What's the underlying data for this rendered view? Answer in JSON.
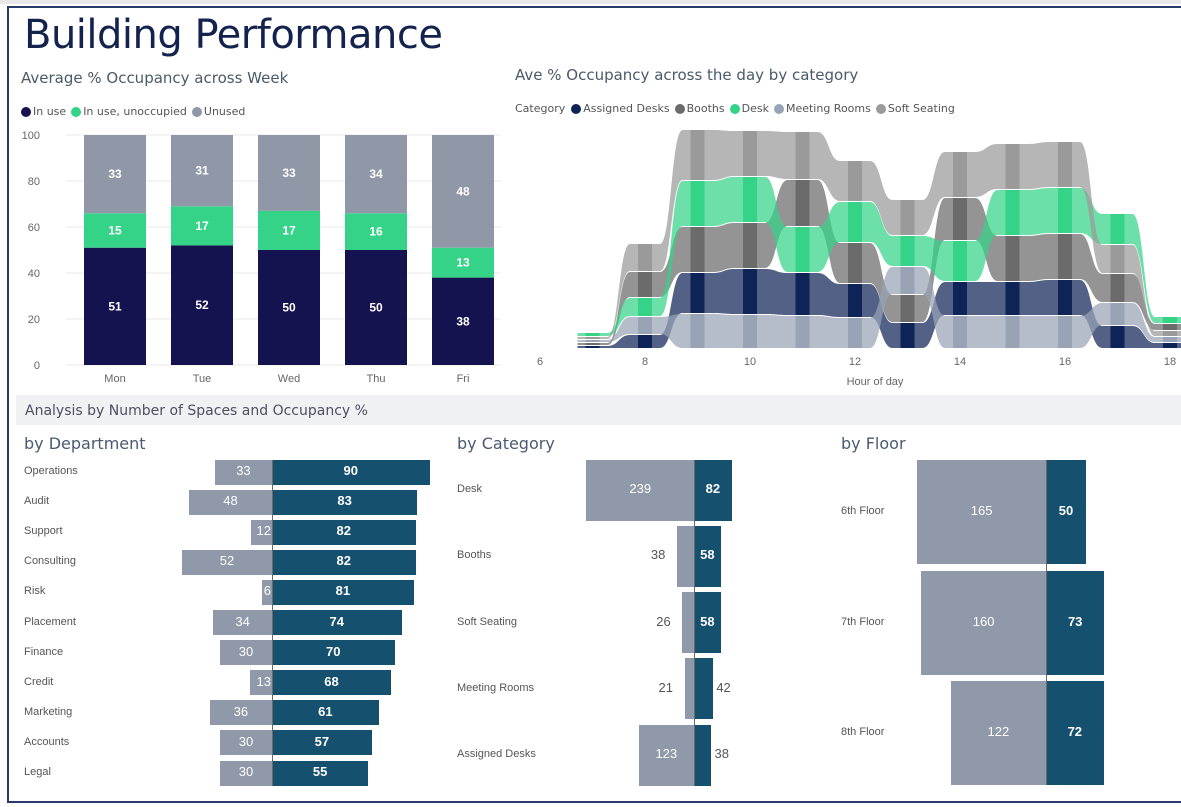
{
  "page": {
    "title": "Building Performance",
    "section_title": "Analysis by Number of Spaces and Occupancy %"
  },
  "colors": {
    "in_use": "#14124f",
    "in_use_unoccupied": "#34d388",
    "unused": "#9098a8",
    "assigned_desks": "#0f2456",
    "booths": "#6b6b6b",
    "desk": "#34d388",
    "meeting_rooms": "#98a3b5",
    "soft_seating": "#9a9a9a",
    "spaces_bar": "#9099aa",
    "occupancy_bar": "#16506f"
  },
  "chart_data": [
    {
      "id": "weekly",
      "type": "bar",
      "stacked": true,
      "title": "Average % Occupancy across Week",
      "categories": [
        "Mon",
        "Tue",
        "Wed",
        "Thu",
        "Fri"
      ],
      "series": [
        {
          "name": "In use",
          "values": [
            51,
            52,
            50,
            50,
            38
          ]
        },
        {
          "name": "In use, unoccupied",
          "values": [
            15,
            17,
            17,
            16,
            13
          ]
        },
        {
          "name": "Unused",
          "values": [
            33,
            31,
            33,
            34,
            48
          ]
        }
      ],
      "legend": [
        "In use",
        "In use, unoccupied",
        "Unused"
      ],
      "legend_position": "top-left",
      "yticks": [
        "0",
        "20",
        "40",
        "60",
        "80",
        "100"
      ],
      "ylim": [
        0,
        100
      ],
      "xlabel": "",
      "ylabel": "",
      "grid": true
    },
    {
      "id": "daily",
      "type": "area",
      "subtype": "ribbon",
      "title": "Ave % Occupancy across the day by category",
      "legend_title": "Category",
      "legend": [
        "Assigned Desks",
        "Booths",
        "Desk",
        "Meeting Rooms",
        "Soft Seating"
      ],
      "legend_position": "top-left",
      "x": [
        7,
        8,
        9,
        10,
        11,
        12,
        13,
        14,
        15,
        16,
        17,
        18
      ],
      "xticks": [
        "6",
        "8",
        "10",
        "12",
        "14",
        "16",
        "18"
      ],
      "xlim": [
        6,
        18
      ],
      "xlabel": "Hour of day",
      "grid": false,
      "series": [
        {
          "name": "Assigned Desks",
          "values": [
            2,
            13,
            40,
            45,
            42,
            33,
            25,
            33,
            33,
            35,
            22,
            5
          ]
        },
        {
          "name": "Booths",
          "values": [
            2,
            25,
            45,
            45,
            46,
            40,
            27,
            42,
            45,
            45,
            28,
            6
          ]
        },
        {
          "name": "Desk",
          "values": [
            3,
            18,
            45,
            45,
            45,
            40,
            30,
            40,
            45,
            45,
            30,
            6
          ]
        },
        {
          "name": "Meeting Rooms",
          "values": [
            2,
            17,
            34,
            33,
            32,
            30,
            27,
            32,
            32,
            32,
            22,
            5
          ]
        },
        {
          "name": "Soft Seating",
          "values": [
            2,
            27,
            50,
            45,
            47,
            40,
            35,
            45,
            45,
            45,
            28,
            5
          ]
        }
      ]
    },
    {
      "id": "department",
      "type": "bar",
      "orientation": "horizontal",
      "diverging": true,
      "title": "by Department",
      "categories": [
        "Operations",
        "Audit",
        "Support",
        "Consulting",
        "Risk",
        "Placement",
        "Finance",
        "Credit",
        "Marketing",
        "Accounts",
        "Legal"
      ],
      "series": [
        {
          "name": "Number of Spaces",
          "values": [
            33,
            48,
            12,
            52,
            6,
            34,
            30,
            13,
            36,
            30,
            30
          ]
        },
        {
          "name": "Occupancy %",
          "values": [
            90,
            83,
            82,
            82,
            81,
            74,
            70,
            68,
            61,
            57,
            55
          ]
        }
      ]
    },
    {
      "id": "category",
      "type": "bar",
      "orientation": "horizontal",
      "diverging": true,
      "title": "by Category",
      "categories": [
        "Desk",
        "Booths",
        "Soft Seating",
        "Meeting Rooms",
        "Assigned Desks"
      ],
      "series": [
        {
          "name": "Number of Spaces",
          "values": [
            239,
            38,
            26,
            21,
            123
          ]
        },
        {
          "name": "Occupancy %",
          "values": [
            82,
            58,
            58,
            42,
            38
          ]
        }
      ]
    },
    {
      "id": "floor",
      "type": "bar",
      "orientation": "horizontal",
      "diverging": true,
      "title": "by Floor",
      "categories": [
        "6th Floor",
        "7th Floor",
        "8th Floor"
      ],
      "series": [
        {
          "name": "Number of Spaces",
          "values": [
            165,
            160,
            122
          ]
        },
        {
          "name": "Occupancy %",
          "values": [
            50,
            73,
            72
          ]
        }
      ]
    }
  ]
}
